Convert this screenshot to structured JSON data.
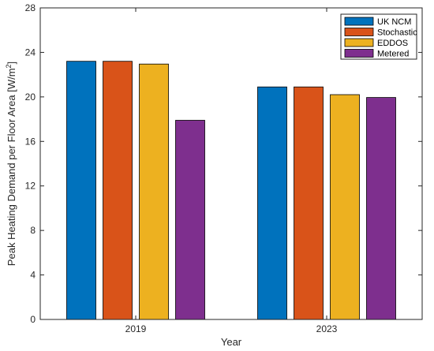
{
  "chart_data": {
    "type": "bar",
    "categories": [
      "2019",
      "2023"
    ],
    "series": [
      {
        "name": "UK NCM",
        "color": "#0072BD",
        "values": [
          23.2,
          20.9
        ]
      },
      {
        "name": "Stochastic",
        "color": "#D95319",
        "values": [
          23.2,
          20.9
        ]
      },
      {
        "name": "EDDOS",
        "color": "#EDB120",
        "values": [
          22.95,
          20.2
        ]
      },
      {
        "name": "Metered",
        "color": "#7E2F8E",
        "values": [
          17.9,
          19.95
        ]
      }
    ],
    "xlabel": "Year",
    "ylabel": "Peak Heating Demand per Floor Area [W/m",
    "ylabel_superscript": "2",
    "ylabel_close": "]",
    "ylim": [
      0,
      28
    ],
    "yticks": [
      0,
      4,
      8,
      12,
      16,
      20,
      24,
      28
    ],
    "yticks_labels": [
      "0",
      "4",
      "8",
      "12",
      "16",
      "20",
      "24",
      "28"
    ],
    "legend_position": "top-right",
    "grid": false
  }
}
